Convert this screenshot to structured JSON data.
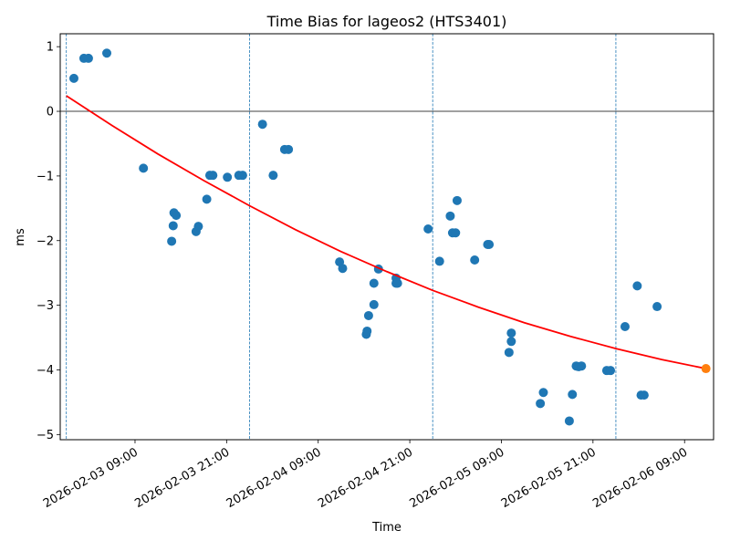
{
  "chart_data": {
    "type": "scatter",
    "title": "Time Bias for lageos2 (HTS3401)",
    "xlabel": "Time",
    "ylabel": "ms",
    "x_units": "hours since 2026-02-03 00:00",
    "xlim": [
      -0.8,
      84.8
    ],
    "ylim": [
      -5.08,
      1.2
    ],
    "grid": false,
    "xticks": [
      {
        "value": 9,
        "label": "2026-02-03 09:00"
      },
      {
        "value": 21,
        "label": "2026-02-03 21:00"
      },
      {
        "value": 33,
        "label": "2026-02-04 09:00"
      },
      {
        "value": 45,
        "label": "2026-02-04 21:00"
      },
      {
        "value": 57,
        "label": "2026-02-05 09:00"
      },
      {
        "value": 69,
        "label": "2026-02-05 21:00"
      },
      {
        "value": 81,
        "label": "2026-02-06 09:00"
      }
    ],
    "yticks": [
      {
        "value": 1,
        "label": "1"
      },
      {
        "value": 0,
        "label": "0"
      },
      {
        "value": -1,
        "label": "−1"
      },
      {
        "value": -2,
        "label": "−2"
      },
      {
        "value": -3,
        "label": "−3"
      },
      {
        "value": -4,
        "label": "−4"
      },
      {
        "value": -5,
        "label": "−5"
      }
    ],
    "zero_line": 0,
    "day_boundaries": [
      0,
      24,
      48,
      72
    ],
    "colors": {
      "points": "#1f77b4",
      "fit": "#ff0000",
      "last": "#ff7f0e",
      "vlines": "#1f77b4"
    },
    "series": [
      {
        "name": "observations",
        "type": "scatter",
        "points": [
          [
            0.99,
            0.51
          ],
          [
            2.3,
            0.82
          ],
          [
            2.9,
            0.82
          ],
          [
            5.3,
            0.9
          ],
          [
            10.1,
            -0.88
          ],
          [
            13.8,
            -2.01
          ],
          [
            14.0,
            -1.77
          ],
          [
            14.1,
            -1.57
          ],
          [
            14.4,
            -1.61
          ],
          [
            17.0,
            -1.86
          ],
          [
            17.3,
            -1.78
          ],
          [
            18.4,
            -1.36
          ],
          [
            18.8,
            -0.99
          ],
          [
            19.2,
            -0.99
          ],
          [
            21.1,
            -1.02
          ],
          [
            22.6,
            -0.99
          ],
          [
            23.1,
            -0.99
          ],
          [
            25.7,
            -0.2
          ],
          [
            27.1,
            -0.99
          ],
          [
            28.6,
            -0.59
          ],
          [
            29.1,
            -0.59
          ],
          [
            35.8,
            -2.33
          ],
          [
            36.2,
            -2.43
          ],
          [
            39.3,
            -3.45
          ],
          [
            39.4,
            -3.4
          ],
          [
            39.6,
            -3.16
          ],
          [
            40.3,
            -2.66
          ],
          [
            40.3,
            -2.99
          ],
          [
            40.9,
            -2.44
          ],
          [
            43.2,
            -2.58
          ],
          [
            43.2,
            -2.66
          ],
          [
            43.4,
            -2.66
          ],
          [
            47.4,
            -1.82
          ],
          [
            48.9,
            -2.32
          ],
          [
            50.3,
            -1.62
          ],
          [
            50.6,
            -1.88
          ],
          [
            51.0,
            -1.88
          ],
          [
            51.2,
            -1.38
          ],
          [
            53.5,
            -2.3
          ],
          [
            55.2,
            -2.06
          ],
          [
            55.4,
            -2.06
          ],
          [
            58.0,
            -3.73
          ],
          [
            58.3,
            -3.43
          ],
          [
            58.3,
            -3.56
          ],
          [
            62.1,
            -4.52
          ],
          [
            62.5,
            -4.35
          ],
          [
            65.9,
            -4.79
          ],
          [
            66.3,
            -4.38
          ],
          [
            66.8,
            -3.94
          ],
          [
            67.1,
            -3.95
          ],
          [
            67.5,
            -3.94
          ],
          [
            70.8,
            -4.01
          ],
          [
            71.3,
            -4.01
          ],
          [
            73.2,
            -3.33
          ],
          [
            74.8,
            -2.7
          ],
          [
            75.3,
            -4.39
          ],
          [
            75.7,
            -4.39
          ],
          [
            77.4,
            -3.02
          ]
        ]
      },
      {
        "name": "fit",
        "type": "line",
        "points": [
          [
            0,
            0.24
          ],
          [
            6,
            -0.22
          ],
          [
            12,
            -0.66
          ],
          [
            18,
            -1.07
          ],
          [
            24,
            -1.46
          ],
          [
            30,
            -1.83
          ],
          [
            36,
            -2.17
          ],
          [
            42,
            -2.48
          ],
          [
            48,
            -2.77
          ],
          [
            54,
            -3.03
          ],
          [
            60,
            -3.27
          ],
          [
            66,
            -3.48
          ],
          [
            72,
            -3.67
          ],
          [
            78,
            -3.84
          ],
          [
            83.8,
            -3.98
          ]
        ]
      },
      {
        "name": "latest",
        "type": "scatter",
        "points": [
          [
            83.8,
            -3.98
          ]
        ]
      }
    ]
  }
}
